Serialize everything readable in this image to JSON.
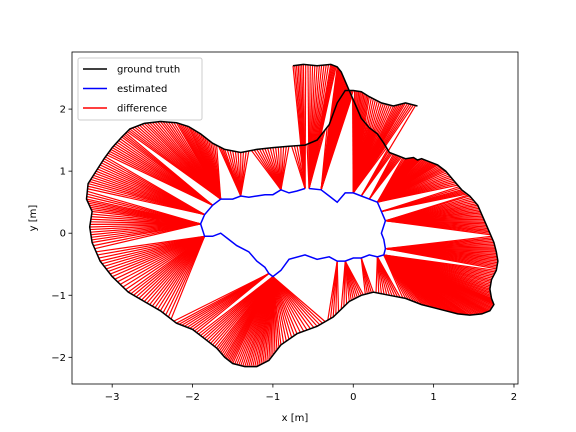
{
  "chart_data": {
    "type": "line",
    "title": "",
    "xlabel": "x [m]",
    "ylabel": "y [m]",
    "xlim": [
      -3.5,
      2.05
    ],
    "ylim": [
      -2.43,
      2.92
    ],
    "xticks": [
      -3,
      -2,
      -1,
      0,
      1,
      2
    ],
    "yticks": [
      -2,
      -1,
      0,
      1,
      2
    ],
    "grid": false,
    "legend": {
      "placement": "upper-left"
    },
    "series": [
      {
        "name": "ground truth",
        "color": "#000000",
        "x": [
          -0.75,
          -0.62,
          -0.45,
          -0.28,
          -0.2,
          -0.15,
          -0.1,
          -0.05,
          0.0,
          0.05,
          0.1,
          0.2,
          0.3,
          0.38,
          0.45,
          0.55,
          0.65,
          0.75,
          0.8,
          0.85,
          0.95,
          1.05,
          1.15,
          1.25,
          1.35,
          1.45,
          1.55,
          1.6,
          1.65,
          1.7,
          1.75,
          1.78,
          1.8,
          1.78,
          1.72,
          1.7,
          1.72,
          1.75,
          1.7,
          1.6,
          1.45,
          1.3,
          1.15,
          1.0,
          0.85,
          0.65,
          0.45,
          0.25,
          0.1,
          -0.05,
          -0.25,
          -0.45,
          -0.7,
          -0.9,
          -1.05,
          -1.2,
          -1.35,
          -1.5,
          -1.6,
          -1.7,
          -1.85,
          -2.0,
          -2.2,
          -2.4,
          -2.6,
          -2.8,
          -3.0,
          -3.15,
          -3.25,
          -3.28,
          -3.25,
          -3.32,
          -3.3,
          -3.2,
          -3.1,
          -3.0,
          -2.88,
          -2.78,
          -2.6,
          -2.4,
          -2.2,
          -2.05,
          -1.9,
          -1.75,
          -1.6,
          -1.4,
          -1.2,
          -1.0,
          -0.8,
          -0.6,
          -0.45,
          -0.3,
          -0.2,
          -0.1,
          0.0,
          0.1,
          0.2,
          0.35,
          0.5,
          0.65,
          0.8
        ],
        "y": [
          2.7,
          2.72,
          2.7,
          2.72,
          2.68,
          2.6,
          2.45,
          2.3,
          2.15,
          2.0,
          1.85,
          1.7,
          1.6,
          1.45,
          1.3,
          1.25,
          1.2,
          1.22,
          1.18,
          1.2,
          1.15,
          1.1,
          1.0,
          0.85,
          0.7,
          0.6,
          0.45,
          0.3,
          0.15,
          0.0,
          -0.15,
          -0.3,
          -0.45,
          -0.6,
          -0.75,
          -0.9,
          -1.05,
          -1.15,
          -1.25,
          -1.3,
          -1.32,
          -1.3,
          -1.25,
          -1.2,
          -1.15,
          -1.05,
          -1.0,
          -0.95,
          -1.0,
          -1.1,
          -1.35,
          -1.5,
          -1.62,
          -1.8,
          -2.05,
          -2.15,
          -2.15,
          -2.1,
          -2.0,
          -1.85,
          -1.7,
          -1.55,
          -1.45,
          -1.25,
          -1.1,
          -0.95,
          -0.7,
          -0.45,
          -0.15,
          0.1,
          0.35,
          0.55,
          0.8,
          1.0,
          1.2,
          1.38,
          1.55,
          1.68,
          1.77,
          1.8,
          1.78,
          1.72,
          1.6,
          1.45,
          1.35,
          1.3,
          1.35,
          1.38,
          1.4,
          1.42,
          1.5,
          1.75,
          2.1,
          2.3,
          2.3,
          2.28,
          2.2,
          2.1,
          2.05,
          2.1,
          2.05
        ]
      },
      {
        "name": "estimated",
        "color": "#0000ff",
        "x": [
          -0.55,
          -0.4,
          -0.3,
          -0.2,
          -0.1,
          0.0,
          0.1,
          0.2,
          0.3,
          0.35,
          0.4,
          0.35,
          0.38,
          0.4,
          0.38,
          0.3,
          0.2,
          0.1,
          0.0,
          -0.1,
          -0.2,
          -0.3,
          -0.45,
          -0.6,
          -0.8,
          -0.9,
          -1.0,
          -1.05,
          -1.1,
          -1.2,
          -1.3,
          -1.45,
          -1.55,
          -1.65,
          -1.75,
          -1.85,
          -1.9,
          -1.85,
          -1.75,
          -1.65,
          -1.5,
          -1.4,
          -1.3,
          -1.2,
          -1.1,
          -1.0,
          -0.9,
          -0.8,
          -0.7,
          -0.6
        ],
        "y": [
          0.72,
          0.7,
          0.6,
          0.5,
          0.65,
          0.65,
          0.6,
          0.55,
          0.5,
          0.35,
          0.2,
          0.0,
          -0.1,
          -0.25,
          -0.35,
          -0.38,
          -0.35,
          -0.4,
          -0.4,
          -0.45,
          -0.45,
          -0.38,
          -0.42,
          -0.35,
          -0.42,
          -0.6,
          -0.7,
          -0.65,
          -0.55,
          -0.45,
          -0.3,
          -0.2,
          -0.1,
          0.0,
          -0.05,
          -0.05,
          0.15,
          0.3,
          0.45,
          0.55,
          0.55,
          0.6,
          0.58,
          0.6,
          0.62,
          0.62,
          0.7,
          0.65,
          0.68,
          0.72
        ]
      },
      {
        "name": "difference",
        "color": "#ff0000",
        "x": [],
        "y": []
      }
    ]
  }
}
